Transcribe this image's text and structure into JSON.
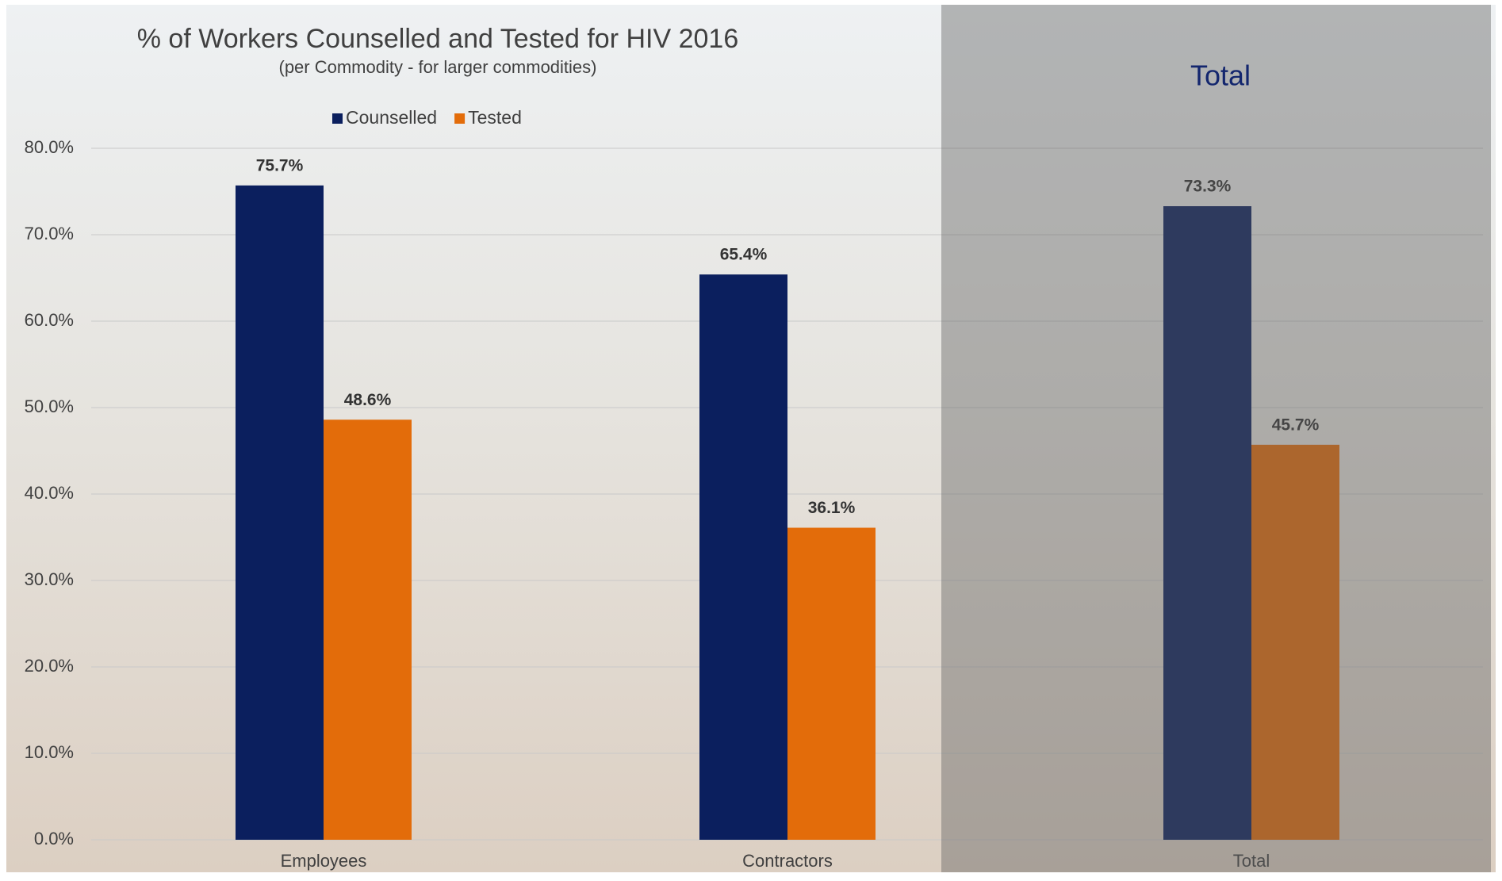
{
  "chart_data": {
    "type": "bar",
    "title": "% of Workers Counselled and Tested for HIV 2016",
    "subtitle": "(per Commodity - for larger commodities)",
    "annotation": "Total",
    "categories": [
      "Employees",
      "Contractors",
      "Total"
    ],
    "series": [
      {
        "name": "Counselled",
        "color": "#0b1f5e",
        "values": [
          75.7,
          65.4,
          73.3
        ],
        "value_labels": [
          "75.7%",
          "65.4%",
          "73.3%"
        ]
      },
      {
        "name": "Tested",
        "color": "#e36c0a",
        "values": [
          48.6,
          36.1,
          45.7
        ],
        "value_labels": [
          "48.6%",
          "36.1%",
          "45.7%"
        ]
      }
    ],
    "ylim": [
      0,
      80
    ],
    "yticks": [
      {
        "value": 0,
        "label": "0.0%"
      },
      {
        "value": 10,
        "label": "10.0%"
      },
      {
        "value": 20,
        "label": "20.0%"
      },
      {
        "value": 30,
        "label": "30.0%"
      },
      {
        "value": 40,
        "label": "40.0%"
      },
      {
        "value": 50,
        "label": "50.0%"
      },
      {
        "value": 60,
        "label": "60.0%"
      },
      {
        "value": 70,
        "label": "70.0%"
      },
      {
        "value": 80,
        "label": "80.0%"
      }
    ],
    "grid": true,
    "legend_position": "top"
  }
}
